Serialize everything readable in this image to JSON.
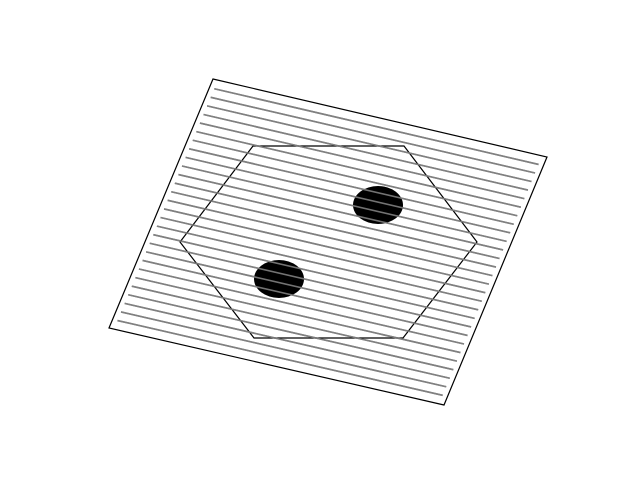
{
  "figure": {
    "background": "#ffffff",
    "outline_color": "#000000",
    "hatch_color": "#808080",
    "hatch_line_count": 28,
    "dot_color": "#000000",
    "dot_count": 2
  },
  "shapes": [
    {
      "kind": "parallelogram",
      "name": "tilted-plate",
      "filled": false
    },
    {
      "kind": "hexagon",
      "name": "hexagon-outline",
      "filled": false
    },
    {
      "kind": "ellipse",
      "name": "dot-upper-right",
      "filled": true
    },
    {
      "kind": "ellipse",
      "name": "dot-lower-left",
      "filled": true
    }
  ]
}
